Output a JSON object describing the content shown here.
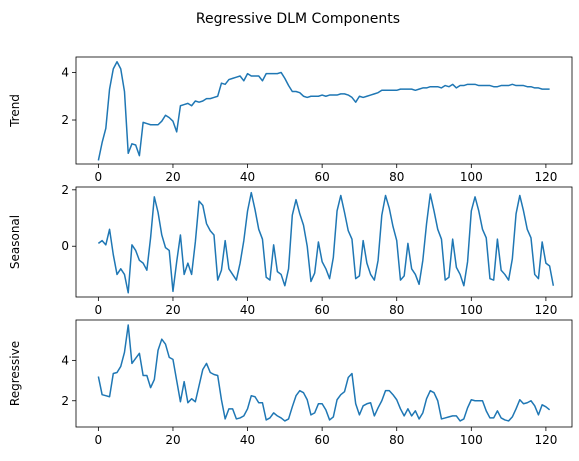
{
  "suptitle": "Regressive DLM Components",
  "chart_data": [
    {
      "type": "line",
      "ylabel": "Trend",
      "xlim": [
        -6,
        127
      ],
      "ylim": [
        0.15,
        4.65
      ],
      "xticks": [
        0,
        20,
        40,
        60,
        80,
        100,
        120
      ],
      "yticks": [
        2,
        4
      ],
      "color": "#1f77b4",
      "x_start": 0,
      "values": [
        0.3,
        1.05,
        1.65,
        3.3,
        4.15,
        4.45,
        4.15,
        3.2,
        0.6,
        1.0,
        0.95,
        0.5,
        1.9,
        1.85,
        1.8,
        1.8,
        1.8,
        1.95,
        2.2,
        2.1,
        1.95,
        1.5,
        2.6,
        2.65,
        2.7,
        2.6,
        2.8,
        2.75,
        2.8,
        2.9,
        2.9,
        2.95,
        3.0,
        3.55,
        3.5,
        3.7,
        3.75,
        3.8,
        3.85,
        3.65,
        3.95,
        3.85,
        3.85,
        3.85,
        3.65,
        3.95,
        3.95,
        3.95,
        3.95,
        4.0,
        3.75,
        3.45,
        3.2,
        3.2,
        3.15,
        3.0,
        2.95,
        3.0,
        3.0,
        3.0,
        3.05,
        3.0,
        3.05,
        3.05,
        3.05,
        3.1,
        3.1,
        3.05,
        2.95,
        2.75,
        3.0,
        2.95,
        3.0,
        3.05,
        3.1,
        3.15,
        3.25,
        3.25,
        3.25,
        3.25,
        3.25,
        3.3,
        3.3,
        3.3,
        3.3,
        3.25,
        3.3,
        3.35,
        3.35,
        3.4,
        3.4,
        3.4,
        3.35,
        3.45,
        3.4,
        3.5,
        3.35,
        3.45,
        3.45,
        3.5,
        3.5,
        3.5,
        3.45,
        3.45,
        3.45,
        3.45,
        3.4,
        3.4,
        3.45,
        3.45,
        3.45,
        3.5,
        3.45,
        3.45,
        3.45,
        3.4,
        3.4,
        3.35,
        3.35,
        3.3,
        3.3,
        3.3
      ]
    },
    {
      "type": "line",
      "ylabel": "Seasonal",
      "xlim": [
        -6,
        127
      ],
      "ylim": [
        -1.8,
        2.1
      ],
      "xticks": [
        0,
        20,
        40,
        60,
        80,
        100,
        120
      ],
      "yticks": [
        0,
        2
      ],
      "ytick_labels": [
        "0",
        "2"
      ],
      "color": "#1f77b4",
      "x_start": 0,
      "values": [
        0.1,
        0.2,
        0.05,
        0.6,
        -0.3,
        -1.0,
        -0.8,
        -1.0,
        -1.65,
        0.05,
        -0.15,
        -0.5,
        -0.6,
        -0.85,
        0.3,
        1.75,
        1.2,
        0.4,
        -0.05,
        -0.15,
        -1.6,
        -0.55,
        0.4,
        -1.0,
        -0.6,
        -1.0,
        0.15,
        1.6,
        1.45,
        0.8,
        0.55,
        0.4,
        -1.2,
        -0.85,
        0.2,
        -0.8,
        -1.0,
        -1.2,
        -0.6,
        0.2,
        1.25,
        1.9,
        1.3,
        0.6,
        0.25,
        -1.1,
        -1.2,
        0.05,
        -0.9,
        -1.0,
        -1.4,
        -0.8,
        1.1,
        1.65,
        1.15,
        0.75,
        0.0,
        -1.25,
        -0.95,
        0.15,
        -0.55,
        -0.8,
        -1.15,
        -0.4,
        1.25,
        1.8,
        1.2,
        0.55,
        0.25,
        -1.15,
        -1.05,
        0.2,
        -0.6,
        -1.0,
        -1.2,
        -0.5,
        1.1,
        1.8,
        1.35,
        0.7,
        0.2,
        -1.2,
        -1.05,
        0.1,
        -0.8,
        -1.0,
        -1.35,
        -0.5,
        0.8,
        1.85,
        1.25,
        0.6,
        0.25,
        -1.2,
        -1.1,
        0.25,
        -0.75,
        -1.0,
        -1.4,
        -0.55,
        1.25,
        1.75,
        1.25,
        0.6,
        0.3,
        -1.15,
        -1.2,
        0.25,
        -0.85,
        -1.0,
        -1.2,
        -0.45,
        1.15,
        1.8,
        1.25,
        0.6,
        0.3,
        -1.0,
        -1.15,
        0.15,
        -0.6,
        -0.7,
        -1.4
      ]
    },
    {
      "type": "line",
      "ylabel": "Regressive",
      "xlim": [
        -6,
        127
      ],
      "ylim": [
        0.7,
        6.0
      ],
      "xticks": [
        0,
        20,
        40,
        60,
        80,
        100,
        120
      ],
      "yticks": [
        2,
        4
      ],
      "color": "#1f77b4",
      "x_start": 0,
      "values": [
        3.2,
        2.3,
        2.25,
        2.2,
        3.35,
        3.4,
        3.7,
        4.4,
        5.75,
        3.85,
        4.1,
        4.35,
        3.25,
        3.25,
        2.65,
        3.05,
        4.5,
        5.05,
        4.8,
        4.15,
        4.05,
        3.0,
        1.95,
        2.95,
        1.9,
        2.1,
        1.95,
        2.75,
        3.55,
        3.85,
        3.4,
        3.3,
        3.25,
        2.05,
        1.1,
        1.6,
        1.6,
        1.1,
        1.15,
        1.25,
        1.6,
        2.25,
        2.2,
        1.9,
        1.9,
        1.05,
        1.15,
        1.4,
        1.25,
        1.15,
        1.0,
        1.1,
        1.7,
        2.25,
        2.5,
        2.4,
        2.05,
        1.3,
        1.4,
        1.85,
        1.85,
        1.55,
        1.05,
        1.2,
        2.05,
        2.3,
        2.45,
        3.15,
        3.35,
        1.85,
        1.3,
        1.75,
        1.85,
        1.9,
        1.25,
        1.65,
        2.0,
        2.5,
        2.5,
        2.3,
        2.05,
        1.6,
        1.25,
        1.6,
        1.25,
        1.5,
        1.1,
        1.4,
        2.1,
        2.5,
        2.4,
        2.0,
        1.1,
        1.15,
        1.2,
        1.25,
        1.25,
        1.0,
        1.1,
        1.65,
        2.05,
        2.0,
        2.0,
        2.0,
        1.5,
        1.15,
        1.15,
        1.5,
        1.15,
        1.05,
        1.0,
        1.2,
        1.6,
        2.05,
        1.85,
        1.9,
        2.0,
        1.75,
        1.3,
        1.8,
        1.7,
        1.55
      ]
    }
  ]
}
